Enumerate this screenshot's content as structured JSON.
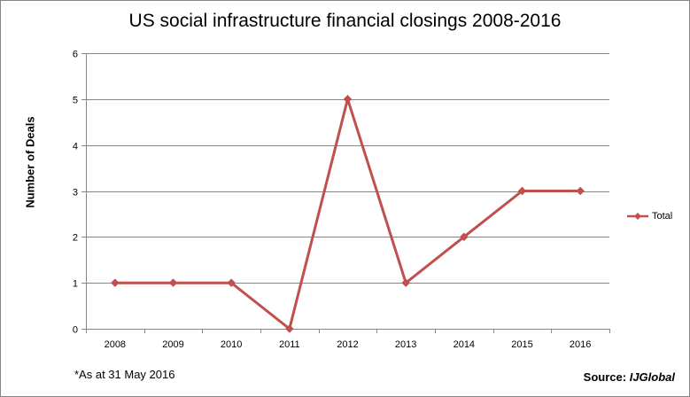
{
  "chart_data": {
    "type": "line",
    "title": "US social infrastructure financial closings 2008-2016",
    "xlabel": "",
    "ylabel": "Number of Deals",
    "categories": [
      "2008",
      "2009",
      "2010",
      "2011",
      "2012",
      "2013",
      "2014",
      "2015",
      "2016"
    ],
    "series": [
      {
        "name": "Total",
        "values": [
          1,
          1,
          1,
          0,
          5,
          1,
          2,
          3,
          3
        ],
        "color": "#c0504d",
        "marker": "diamond"
      }
    ],
    "ylim": [
      0,
      6
    ],
    "yticks": [
      "0",
      "1",
      "2",
      "3",
      "4",
      "5",
      "6"
    ],
    "grid": true,
    "legend": "right",
    "gridline_color": "#868686"
  },
  "footnote": "*As at 31 May 2016",
  "source": {
    "prefix": "Source:",
    "name": "IJGlobal"
  }
}
